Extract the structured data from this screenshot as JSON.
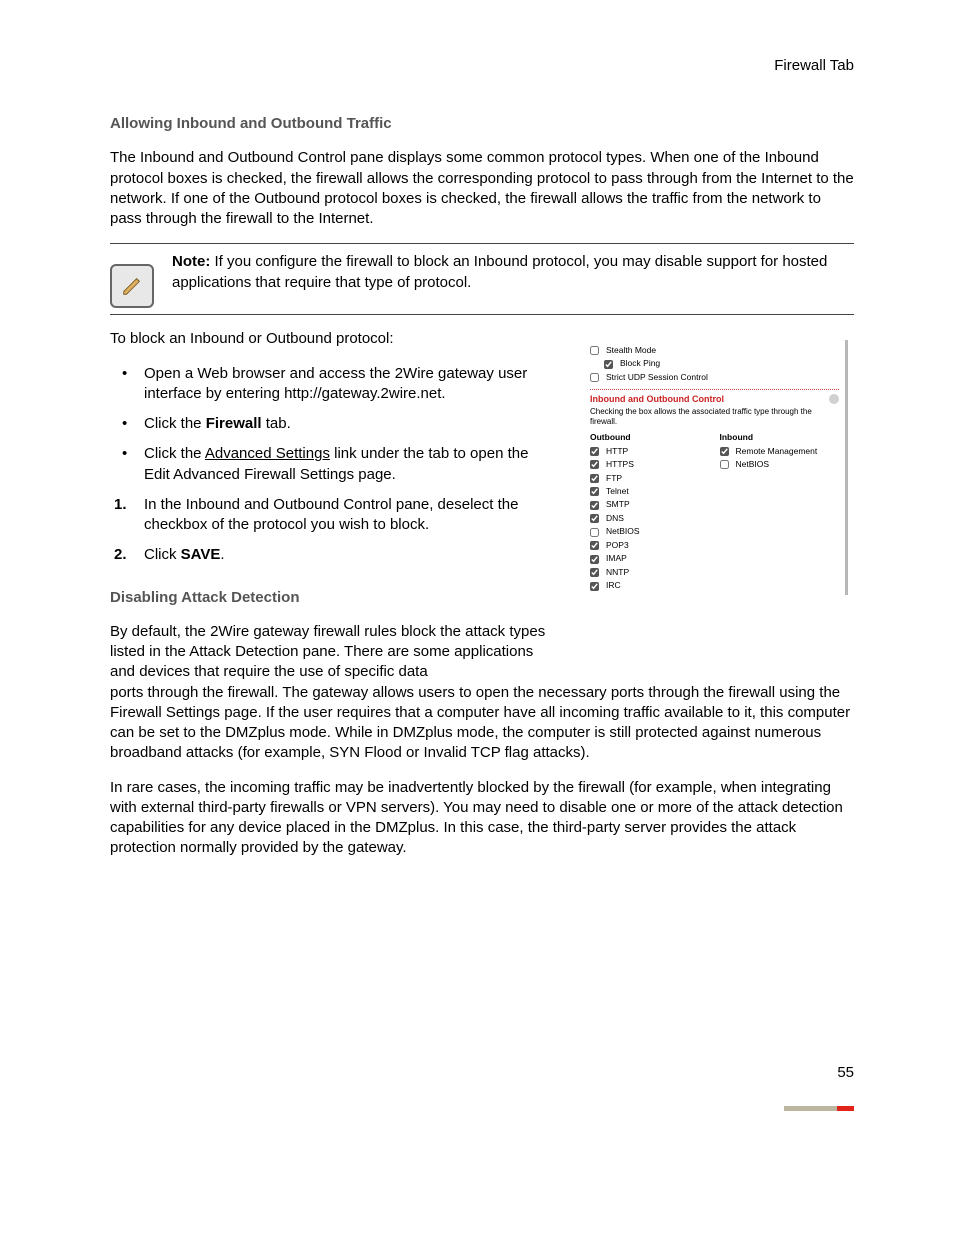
{
  "header": {
    "section": "Firewall Tab"
  },
  "h_allow": "Allowing Inbound and Outbound Traffic",
  "p_allow": "The Inbound and Outbound Control pane displays some common protocol types. When one of the Inbound protocol boxes is checked, the firewall allows the corresponding protocol to pass through from the Internet to the network. If one of the Outbound protocol boxes is checked, the firewall allows the traffic from the network to pass through the firewall to the Internet.",
  "note_label": "Note:",
  "note_body": " If you configure the firewall to block an Inbound protocol, you may disable support for hosted applications that require that type of protocol.",
  "p_block_intro": "To block an Inbound or Outbound protocol:",
  "bullets": [
    {
      "pre": "Open a Web browser and access the 2Wire gateway user interface by entering http://gateway.2wire.net."
    },
    {
      "pre": "Click the ",
      "bold": "Firewall",
      "post": " tab."
    },
    {
      "pre": "Click the ",
      "under": "Advanced Settings",
      "post": " link under the tab to open the Edit Advanced Firewall Settings page."
    }
  ],
  "steps": [
    {
      "text": "In the Inbound and Outbound Control pane, deselect the checkbox of the protocol you wish to block."
    },
    {
      "pre": "Click ",
      "bold": "SAVE",
      "post": "."
    }
  ],
  "h_attack": "Disabling Attack Detection",
  "p_attack_1": "By default, the 2Wire gateway firewall rules block the attack types listed in the Attack Detection pane. There are some applications and devices that require the use of specific data",
  "p_attack_1b": "ports through the firewall. The gateway allows users to open the necessary ports through the firewall using the Firewall Settings page. If the user requires that a computer have all incoming traffic available to it, this computer can be set to the DMZplus mode. While in DMZplus mode, the computer is still protected against numerous broadband attacks (for example, SYN Flood or Invalid TCP flag attacks).",
  "p_attack_2": "In rare cases, the incoming traffic may be inadvertently blocked by the firewall (for example, when integrating with external third-party firewalls or VPN servers). You may need to disable one or more of the attack detection capabilities for any device placed in the DMZplus. In this case, the third-party server provides the attack protection normally provided by the gateway.",
  "page_number": "55",
  "shot": {
    "top": [
      {
        "label": "Stealth Mode",
        "checked": false,
        "indent": false
      },
      {
        "label": "Block Ping",
        "checked": true,
        "indent": true
      },
      {
        "label": "Strict UDP Session Control",
        "checked": false,
        "indent": false
      }
    ],
    "section_title": "Inbound and Outbound Control",
    "desc": "Checking the box allows the associated traffic type through the firewall.",
    "outbound_head": "Outbound",
    "inbound_head": "Inbound",
    "outbound": [
      {
        "label": "HTTP",
        "checked": true
      },
      {
        "label": "HTTPS",
        "checked": true
      },
      {
        "label": "FTP",
        "checked": true
      },
      {
        "label": "Telnet",
        "checked": true
      },
      {
        "label": "SMTP",
        "checked": true
      },
      {
        "label": "DNS",
        "checked": true
      },
      {
        "label": "NetBIOS",
        "checked": false
      },
      {
        "label": "POP3",
        "checked": true
      },
      {
        "label": "IMAP",
        "checked": true
      },
      {
        "label": "NNTP",
        "checked": true
      },
      {
        "label": "IRC",
        "checked": true
      }
    ],
    "inbound": [
      {
        "label": "Remote Management",
        "checked": true
      },
      {
        "label": "NetBIOS",
        "checked": false
      }
    ]
  }
}
